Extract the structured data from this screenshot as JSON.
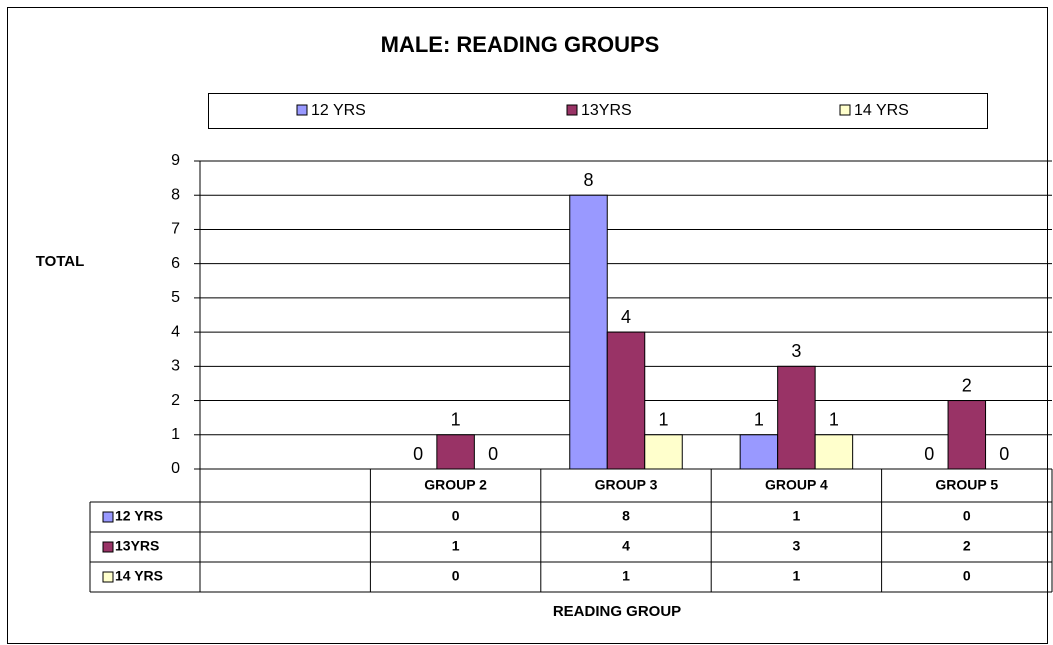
{
  "chart_data": {
    "type": "bar",
    "title": "MALE: READING GROUPS",
    "y_axis_label": "TOTAL",
    "x_axis_label": "READING GROUP",
    "categories": [
      null,
      "GROUP 2",
      "GROUP 3",
      "GROUP 4",
      "GROUP 5"
    ],
    "series": [
      {
        "name": "12 YRS",
        "color": "#9999ff",
        "values": [
          null,
          0,
          8,
          1,
          0
        ]
      },
      {
        "name": "13YRS",
        "color": "#993366",
        "values": [
          null,
          1,
          4,
          3,
          2
        ]
      },
      {
        "name": "14 YRS",
        "color": "#ffffcc",
        "values": [
          null,
          0,
          1,
          1,
          0
        ]
      }
    ],
    "ylim": [
      0,
      9
    ],
    "yticks": [
      0,
      1,
      2,
      3,
      4,
      5,
      6,
      7,
      8,
      9
    ],
    "grid": true,
    "legend": "top",
    "data_table": true
  }
}
